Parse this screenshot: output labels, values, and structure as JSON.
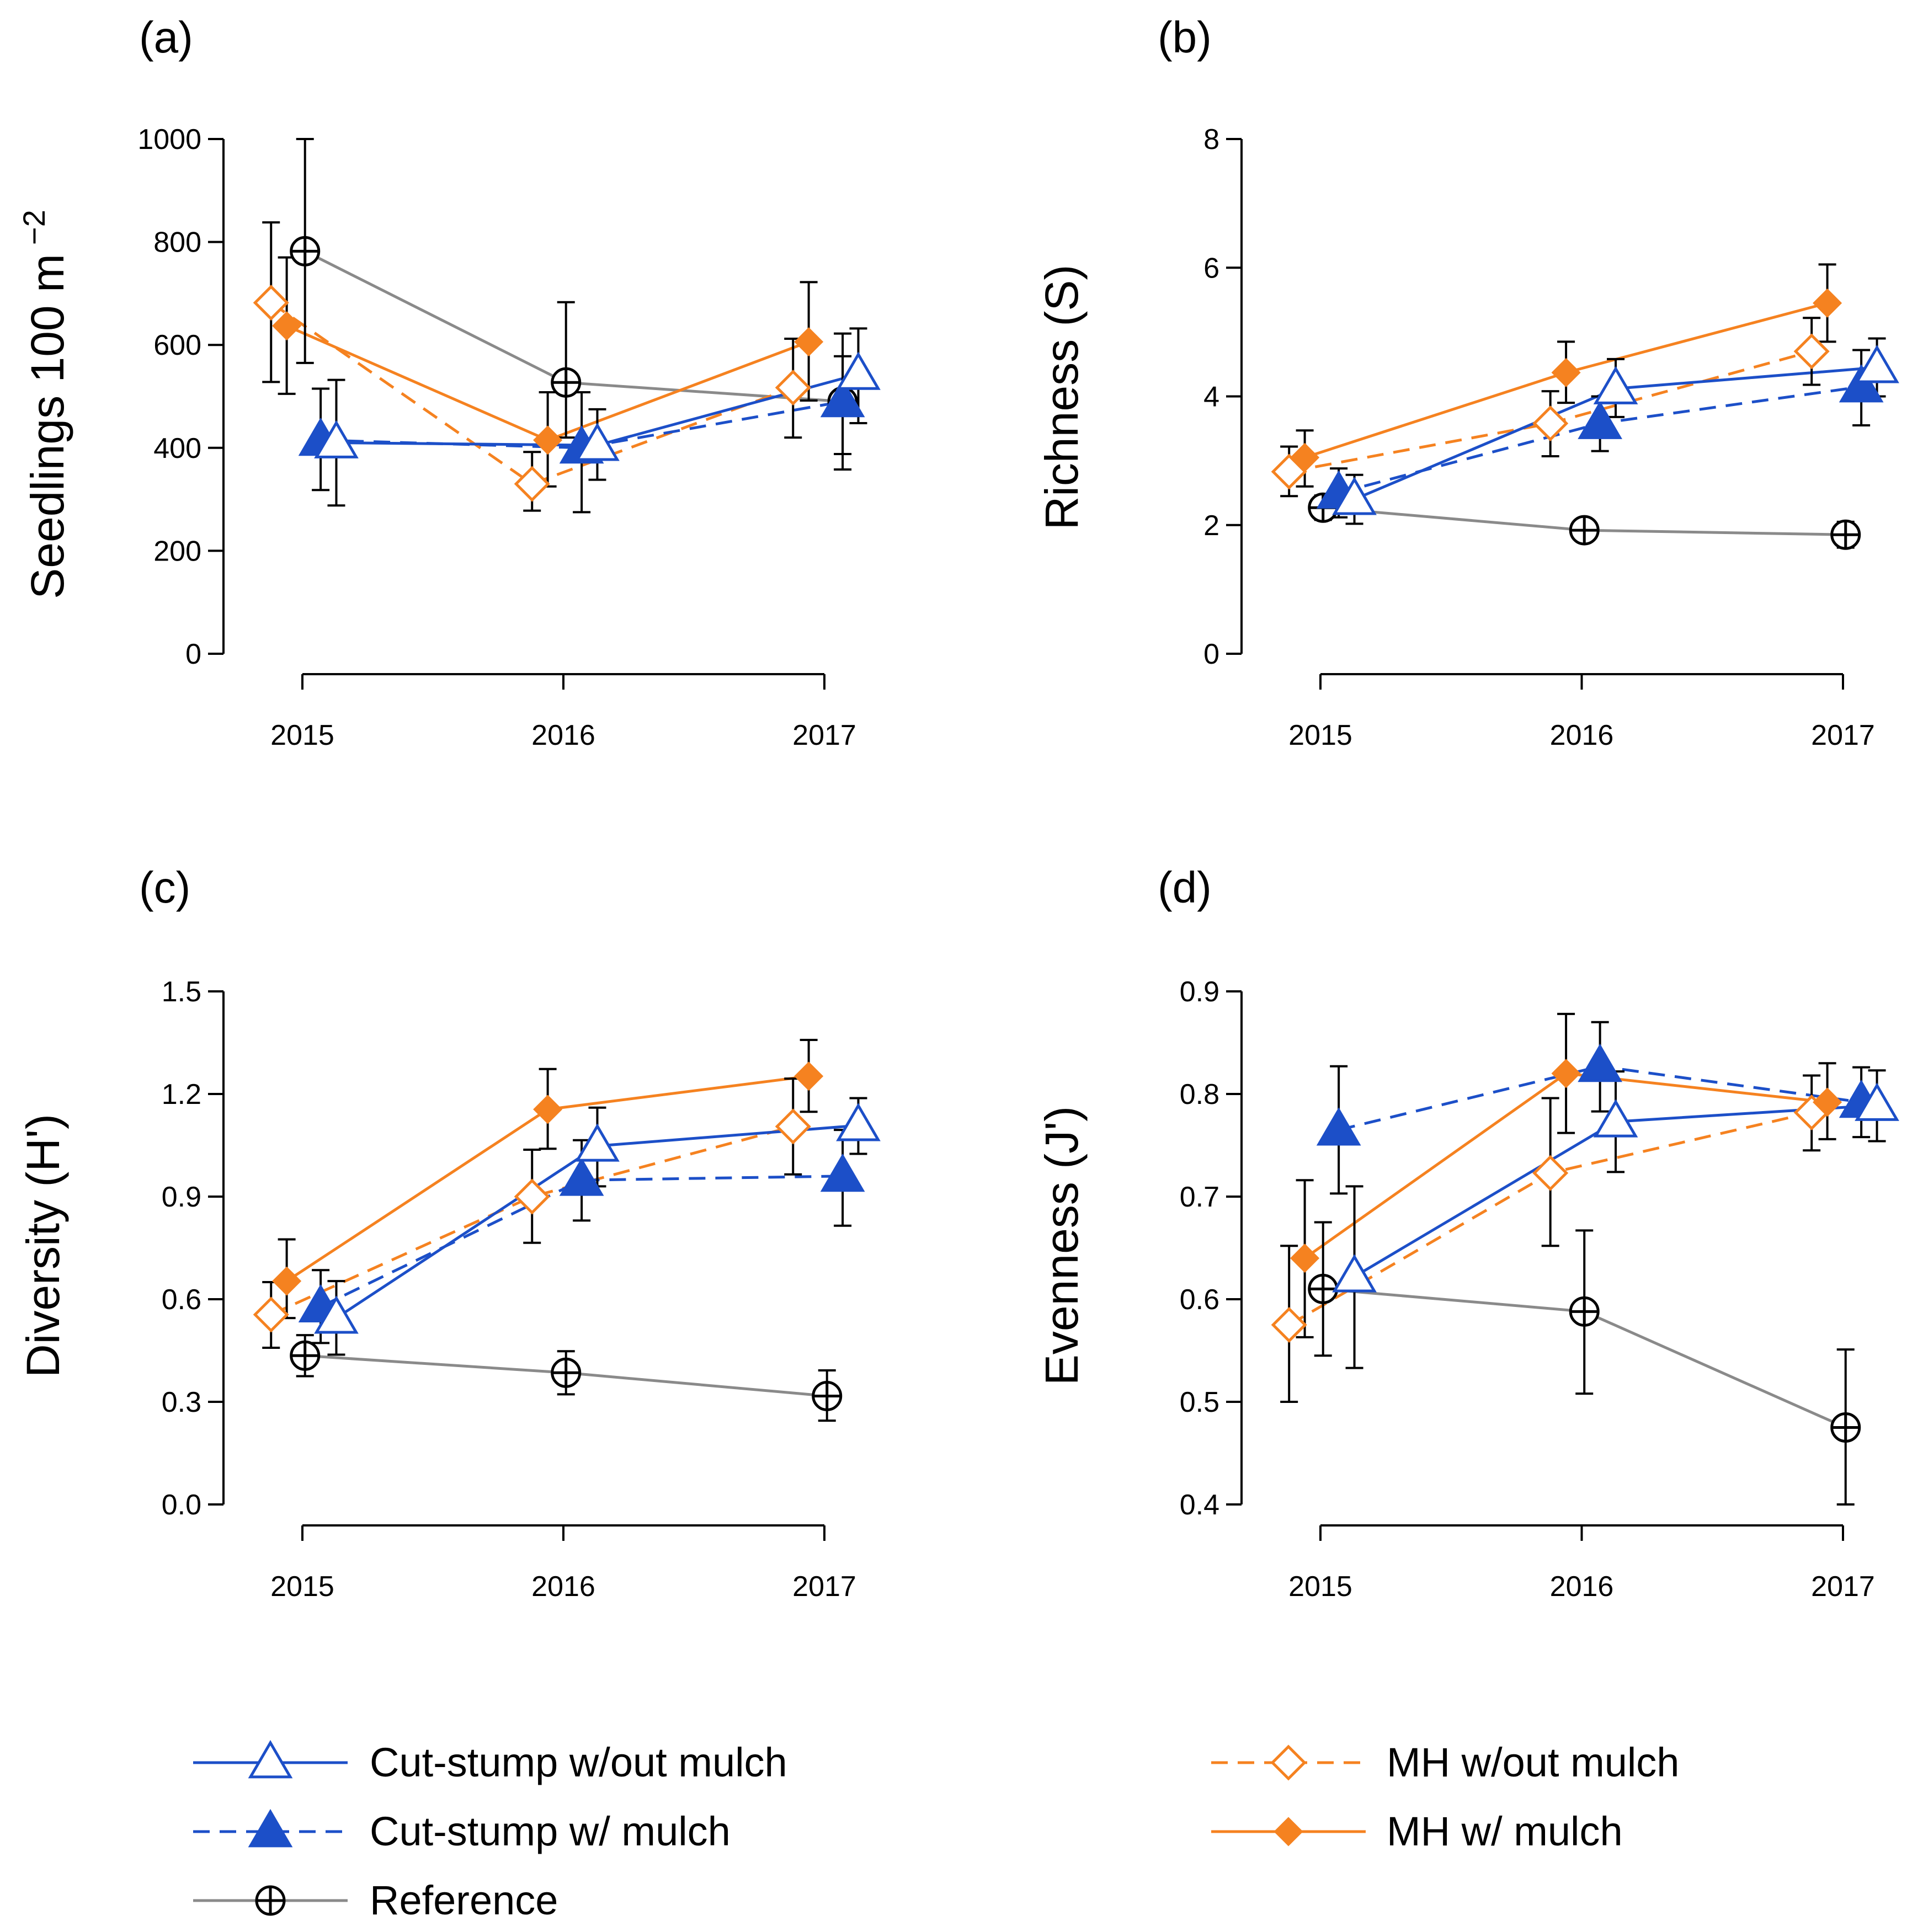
{
  "colors": {
    "blue": "#1c4fc8",
    "orange": "#f58220",
    "gray": "#8a8a8a",
    "black": "#000000"
  },
  "legend": {
    "items": [
      {
        "key": "cs_wo",
        "label": "Cut-stump w/out mulch"
      },
      {
        "key": "cs_w",
        "label": "Cut-stump w/ mulch"
      },
      {
        "key": "ref",
        "label": "Reference"
      },
      {
        "key": "mh_wo",
        "label": "MH w/out mulch"
      },
      {
        "key": "mh_w",
        "label": "MH w/ mulch"
      }
    ]
  },
  "series_styles": {
    "cs_wo": {
      "color": "blue",
      "dash": false,
      "marker": "triangle-open"
    },
    "cs_w": {
      "color": "blue",
      "dash": true,
      "marker": "triangle-filled"
    },
    "ref": {
      "color": "gray",
      "dash": false,
      "marker": "circle-plus"
    },
    "mh_wo": {
      "color": "orange",
      "dash": true,
      "marker": "diamond-open"
    },
    "mh_w": {
      "color": "orange",
      "dash": false,
      "marker": "diamond-filled"
    }
  },
  "chart_data": [
    {
      "type": "line",
      "panel": "(a)",
      "ylabel": "Seedlings 100 m",
      "ylabel_sup": "−2",
      "ylim": [
        0,
        1000
      ],
      "yticks": [
        0,
        200,
        400,
        600,
        800,
        1000
      ],
      "ytick_labels": [
        "0",
        "200",
        "400",
        "600",
        "800",
        "1000"
      ],
      "categories": [
        "2015",
        "2016",
        "2017"
      ],
      "series": [
        {
          "key": "ref",
          "x": [
            2015.01,
            2016.01,
            2017.07
          ],
          "values": [
            782,
            527,
            490
          ],
          "err_low": [
            565,
            420,
            358
          ],
          "err_high": [
            1000,
            683,
            622
          ]
        },
        {
          "key": "mh_wo",
          "x": [
            2014.88,
            2015.88,
            2016.88
          ],
          "values": [
            682,
            330,
            517
          ],
          "err_low": [
            528,
            278,
            420
          ],
          "err_high": [
            838,
            392,
            612
          ]
        },
        {
          "key": "mh_w",
          "x": [
            2014.94,
            2015.94,
            2016.94
          ],
          "values": [
            637,
            415,
            606
          ],
          "err_low": [
            505,
            325,
            492
          ],
          "err_high": [
            770,
            508,
            722
          ]
        },
        {
          "key": "cs_w",
          "x": [
            2015.07,
            2016.07,
            2017.07
          ],
          "values": [
            415,
            400,
            490
          ],
          "err_low": [
            318,
            275,
            388
          ],
          "err_high": [
            515,
            508,
            578
          ]
        },
        {
          "key": "cs_wo",
          "x": [
            2015.13,
            2016.13,
            2017.13
          ],
          "values": [
            410,
            405,
            543
          ],
          "err_low": [
            288,
            338,
            448
          ],
          "err_high": [
            532,
            475,
            632
          ]
        }
      ]
    },
    {
      "type": "line",
      "panel": "(b)",
      "ylabel": "Richness (S)",
      "ylim": [
        0,
        8
      ],
      "yticks": [
        0,
        2,
        4,
        6,
        8
      ],
      "ytick_labels": [
        "0",
        "2",
        "4",
        "6",
        "8"
      ],
      "categories": [
        "2015",
        "2016",
        "2017"
      ],
      "series": [
        {
          "key": "ref",
          "x": [
            2015.01,
            2016.01,
            2017.01
          ],
          "values": [
            2.27,
            1.92,
            1.85
          ],
          "err_low": [
            2.08,
            1.78,
            1.65
          ],
          "err_high": [
            2.46,
            2.06,
            2.05
          ]
        },
        {
          "key": "mh_wo",
          "x": [
            2014.88,
            2015.88,
            2016.88
          ],
          "values": [
            2.83,
            3.58,
            4.7
          ],
          "err_low": [
            2.45,
            3.07,
            4.18
          ],
          "err_high": [
            3.22,
            4.08,
            5.22
          ]
        },
        {
          "key": "mh_w",
          "x": [
            2014.94,
            2015.94,
            2016.94
          ],
          "values": [
            3.05,
            4.37,
            5.45
          ],
          "err_low": [
            2.6,
            3.9,
            4.85
          ],
          "err_high": [
            3.47,
            4.85,
            6.05
          ]
        },
        {
          "key": "cs_w",
          "x": [
            2015.07,
            2016.07,
            2017.07
          ],
          "values": [
            2.5,
            3.58,
            4.15
          ],
          "err_low": [
            2.12,
            3.15,
            3.55
          ],
          "err_high": [
            2.88,
            4.0,
            4.72
          ]
        },
        {
          "key": "cs_wo",
          "x": [
            2015.13,
            2016.13,
            2017.13
          ],
          "values": [
            2.4,
            4.12,
            4.45
          ],
          "err_low": [
            2.02,
            3.68,
            4.0
          ],
          "err_high": [
            2.78,
            4.58,
            4.9
          ]
        }
      ]
    },
    {
      "type": "line",
      "panel": "(c)",
      "ylabel": "Diversity (H')",
      "ylim": [
        0.0,
        1.5
      ],
      "yticks": [
        0.0,
        0.3,
        0.6,
        0.9,
        1.2,
        1.5
      ],
      "ytick_labels": [
        "0.0",
        "0.3",
        "0.6",
        "0.9",
        "1.2",
        "1.5"
      ],
      "categories": [
        "2015",
        "2016",
        "2017"
      ],
      "series": [
        {
          "key": "ref",
          "x": [
            2015.01,
            2016.01,
            2017.01
          ],
          "values": [
            0.435,
            0.385,
            0.317
          ],
          "err_low": [
            0.375,
            0.322,
            0.245
          ],
          "err_high": [
            0.495,
            0.448,
            0.392
          ]
        },
        {
          "key": "mh_wo",
          "x": [
            2014.88,
            2015.88,
            2016.88
          ],
          "values": [
            0.555,
            0.9,
            1.105
          ],
          "err_low": [
            0.458,
            0.765,
            0.965
          ],
          "err_high": [
            0.65,
            1.037,
            1.245
          ]
        },
        {
          "key": "mh_w",
          "x": [
            2014.94,
            2015.94,
            2016.94
          ],
          "values": [
            0.653,
            1.155,
            1.252
          ],
          "err_low": [
            0.545,
            1.04,
            1.148
          ],
          "err_high": [
            0.775,
            1.273,
            1.358
          ]
        },
        {
          "key": "cs_w",
          "x": [
            2015.07,
            2016.07,
            2017.07
          ],
          "values": [
            0.578,
            0.948,
            0.96
          ],
          "err_low": [
            0.472,
            0.83,
            0.815
          ],
          "err_high": [
            0.685,
            1.065,
            1.095
          ]
        },
        {
          "key": "cs_wo",
          "x": [
            2015.13,
            2016.13,
            2017.13
          ],
          "values": [
            0.545,
            1.048,
            1.108
          ],
          "err_low": [
            0.438,
            0.93,
            1.025
          ],
          "err_high": [
            0.653,
            1.16,
            1.188
          ]
        }
      ]
    },
    {
      "type": "line",
      "panel": "(d)",
      "ylabel": "Evenness (J')",
      "ylim": [
        0.4,
        0.9
      ],
      "yticks": [
        0.4,
        0.5,
        0.6,
        0.7,
        0.8,
        0.9
      ],
      "ytick_labels": [
        "0.4",
        "0.5",
        "0.6",
        "0.7",
        "0.8",
        "0.9"
      ],
      "categories": [
        "2015",
        "2016",
        "2017"
      ],
      "series": [
        {
          "key": "ref",
          "x": [
            2015.01,
            2016.01,
            2017.01
          ],
          "values": [
            0.61,
            0.588,
            0.475
          ],
          "err_low": [
            0.545,
            0.508,
            0.4
          ],
          "err_high": [
            0.675,
            0.667,
            0.551
          ]
        },
        {
          "key": "mh_wo",
          "x": [
            2014.88,
            2015.88,
            2016.88
          ],
          "values": [
            0.575,
            0.723,
            0.782
          ],
          "err_low": [
            0.5,
            0.652,
            0.745
          ],
          "err_high": [
            0.652,
            0.796,
            0.818
          ]
        },
        {
          "key": "mh_w",
          "x": [
            2014.94,
            2015.94,
            2016.94
          ],
          "values": [
            0.64,
            0.82,
            0.792
          ],
          "err_low": [
            0.563,
            0.762,
            0.756
          ],
          "err_high": [
            0.716,
            0.878,
            0.83
          ]
        },
        {
          "key": "cs_w",
          "x": [
            2015.07,
            2016.07,
            2017.07
          ],
          "values": [
            0.765,
            0.827,
            0.792
          ],
          "err_low": [
            0.703,
            0.783,
            0.758
          ],
          "err_high": [
            0.827,
            0.87,
            0.826
          ]
        },
        {
          "key": "cs_wo",
          "x": [
            2015.13,
            2016.13,
            2017.13
          ],
          "values": [
            0.622,
            0.773,
            0.789
          ],
          "err_low": [
            0.533,
            0.724,
            0.754
          ],
          "err_high": [
            0.71,
            0.822,
            0.823
          ]
        }
      ]
    }
  ]
}
